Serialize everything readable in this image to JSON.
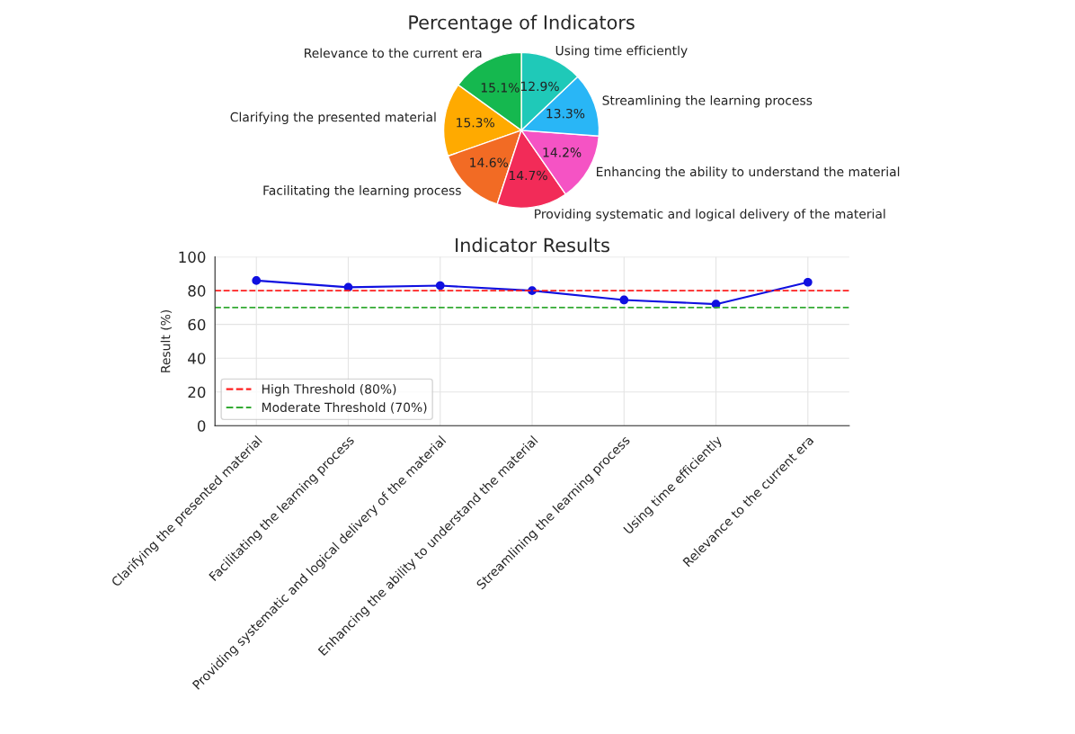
{
  "chart_data": [
    {
      "type": "pie",
      "title": "Percentage of Indicators",
      "categories": [
        "Clarifying the presented material",
        "Facilitating the learning process",
        "Providing systematic and logical delivery of the material",
        "Enhancing the ability to understand the material",
        "Streamlining the learning process",
        "Using time efficiently",
        "Relevance to the current era"
      ],
      "values": [
        15.3,
        14.6,
        14.7,
        14.2,
        13.3,
        12.9,
        15.1
      ],
      "value_labels": [
        "15.3%",
        "14.6%",
        "14.7%",
        "14.2%",
        "13.3%",
        "12.9%",
        "15.1%"
      ],
      "colors": [
        "#ffaa00",
        "#f26b24",
        "#f22b58",
        "#f553c4",
        "#29b6f6",
        "#1fc9b8",
        "#15b84f"
      ]
    },
    {
      "type": "line",
      "title": "Indicator Results",
      "ylabel": "Result (%)",
      "categories": [
        "Clarifying the presented material",
        "Facilitating the learning process",
        "Providing systematic and logical delivery of the material",
        "Enhancing the ability to understand the material",
        "Streamlining the learning process",
        "Using time efficiently",
        "Relevance to the current era"
      ],
      "series": [
        {
          "color": "#1010e0",
          "values": [
            86,
            82,
            83,
            80,
            74.5,
            72,
            85
          ]
        }
      ],
      "ylim": [
        0,
        100
      ],
      "yticks": [
        0,
        20,
        40,
        60,
        80,
        100
      ],
      "ref_lines": [
        {
          "axis": "y",
          "value": 80,
          "label": "High Threshold (80%)",
          "color": "#ff2020",
          "line_style": "dashed"
        },
        {
          "axis": "y",
          "value": 70,
          "label": "Moderate Threshold (70%)",
          "color": "#33aa33",
          "line_style": "dashed"
        }
      ],
      "marker": "circle",
      "line_style": "solid",
      "grid": true,
      "legend": "bottom left"
    }
  ]
}
